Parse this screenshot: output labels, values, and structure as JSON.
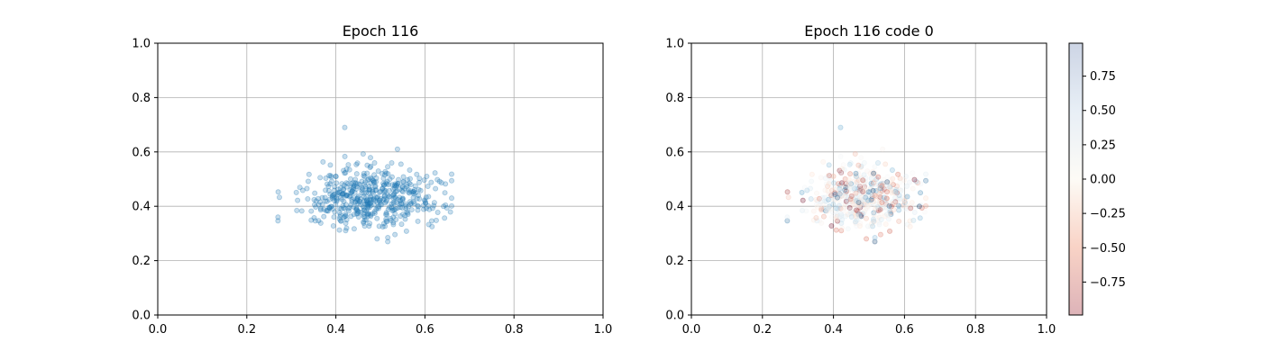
{
  "chart_data": [
    {
      "type": "scatter",
      "title": "Epoch 116",
      "xlabel": "",
      "ylabel": "",
      "xlim": [
        0.0,
        1.0
      ],
      "ylim": [
        0.0,
        1.0
      ],
      "grid": true,
      "x_ticks": [
        "0.0",
        "0.2",
        "0.4",
        "0.6",
        "0.8",
        "1.0"
      ],
      "y_ticks": [
        "0.0",
        "0.2",
        "0.4",
        "0.6",
        "0.8",
        "1.0"
      ],
      "marker_color": "#1f77b4",
      "marker_alpha": 0.25,
      "point_distribution": {
        "count": 500,
        "center": [
          0.48,
          0.43
        ],
        "spread": [
          0.075,
          0.055
        ],
        "x_range": [
          0.27,
          0.66
        ],
        "y_range": [
          0.27,
          0.69
        ]
      }
    },
    {
      "type": "scatter",
      "title": "Epoch 116 code 0",
      "xlabel": "",
      "ylabel": "",
      "xlim": [
        0.0,
        1.0
      ],
      "ylim": [
        0.0,
        1.0
      ],
      "grid": true,
      "x_ticks": [
        "0.0",
        "0.2",
        "0.4",
        "0.6",
        "0.8",
        "1.0"
      ],
      "y_ticks": [
        "0.0",
        "0.2",
        "0.4",
        "0.6",
        "0.8",
        "1.0"
      ],
      "marker_alpha": 0.25,
      "colormap": "RdBu",
      "color_range": [
        -0.99,
        0.99
      ],
      "colorbar_ticks": [
        "0.75",
        "0.50",
        "0.25",
        "0.00",
        "−0.25",
        "−0.50",
        "−0.75"
      ],
      "colorbar_tick_values": [
        0.75,
        0.5,
        0.25,
        0.0,
        -0.25,
        -0.5,
        -0.75
      ],
      "colorbar_colors": {
        "low": "#67001f",
        "low_mid": "#d6604d",
        "mid_low": "#fddbc7",
        "mid": "#f7f7f7",
        "mid_high": "#d1e5f0",
        "high_mid": "#4393c3",
        "high": "#053061"
      }
    }
  ]
}
